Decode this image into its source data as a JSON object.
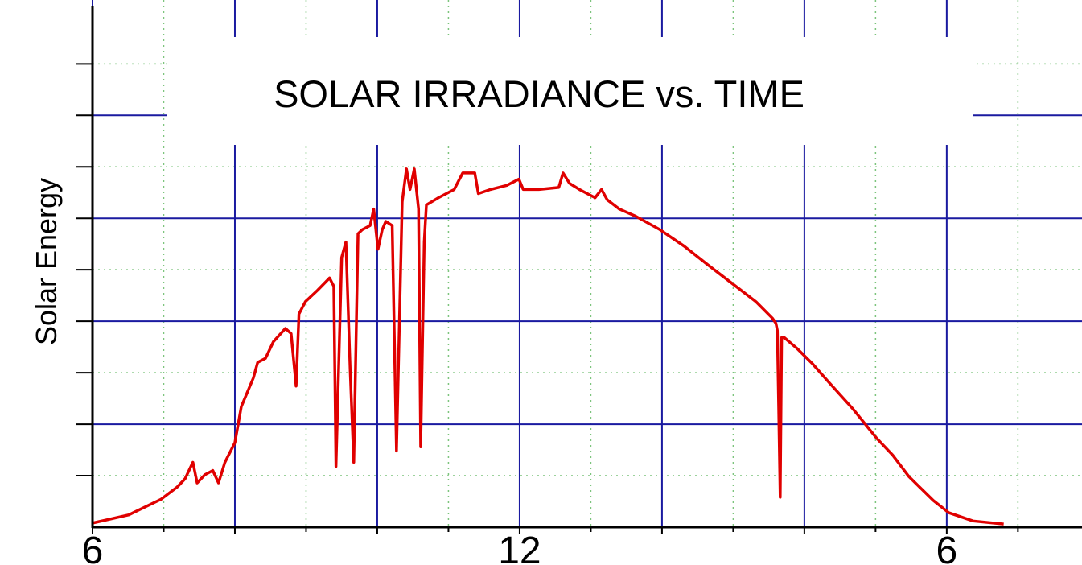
{
  "chart_data": {
    "type": "line",
    "title": "SOLAR IRRADIANCE vs. TIME",
    "ylabel": "Solar Energy",
    "xlim": [
      6,
      19.9
    ],
    "ylim": [
      0,
      5.12
    ],
    "xticks": [
      6,
      8,
      10,
      12,
      14,
      16,
      {
        "value": 18,
        "label": "6"
      }
    ],
    "xtick_labels_at": [
      6,
      12,
      {
        "value": 18,
        "label": "6"
      }
    ],
    "yticks": [
      1,
      2,
      3,
      4
    ],
    "minor_xticks": [
      7,
      9,
      11,
      13,
      15,
      17,
      19
    ],
    "minor_yticks": [
      0.5,
      1.5,
      2.5,
      3.5,
      4.5
    ],
    "grid": true,
    "grid_color": "#1a1aa0",
    "minor_grid_color": "#7cc47c",
    "series": [
      {
        "color": "#e00000",
        "x": [
          6.0,
          6.51,
          6.96,
          7.19,
          7.3,
          7.41,
          7.47,
          7.58,
          7.69,
          7.77,
          7.86,
          8.0,
          8.09,
          8.26,
          8.32,
          8.43,
          8.54,
          8.71,
          8.79,
          8.86,
          8.9,
          8.99,
          9.16,
          9.33,
          9.39,
          9.42,
          9.5,
          9.56,
          9.62,
          9.67,
          9.73,
          9.79,
          9.9,
          9.95,
          10.01,
          10.07,
          10.12,
          10.21,
          10.27,
          10.35,
          10.41,
          10.46,
          10.52,
          10.58,
          10.61,
          10.66,
          10.69,
          10.86,
          11.08,
          11.2,
          11.37,
          11.42,
          11.59,
          11.82,
          11.99,
          12.05,
          12.27,
          12.55,
          12.61,
          12.7,
          12.84,
          13.06,
          13.15,
          13.23,
          13.4,
          13.63,
          13.97,
          14.31,
          14.64,
          14.98,
          15.32,
          15.55,
          15.6,
          15.62,
          15.64,
          15.66,
          15.68,
          15.72,
          15.89,
          16.11,
          16.34,
          16.68,
          17.02,
          17.24,
          17.47,
          17.81,
          18.03,
          18.37,
          18.8
        ],
        "values": [
          0.04,
          0.12,
          0.27,
          0.39,
          0.47,
          0.63,
          0.43,
          0.51,
          0.55,
          0.43,
          0.63,
          0.82,
          1.17,
          1.45,
          1.6,
          1.64,
          1.8,
          1.93,
          1.88,
          1.37,
          2.07,
          2.19,
          2.3,
          2.42,
          2.34,
          0.59,
          2.62,
          2.77,
          1.52,
          0.63,
          2.85,
          2.89,
          2.93,
          3.09,
          2.7,
          2.89,
          2.97,
          2.93,
          0.74,
          3.16,
          3.48,
          3.28,
          3.48,
          3.09,
          0.78,
          2.77,
          3.13,
          3.2,
          3.28,
          3.44,
          3.44,
          3.24,
          3.28,
          3.32,
          3.38,
          3.28,
          3.28,
          3.3,
          3.44,
          3.34,
          3.28,
          3.2,
          3.28,
          3.18,
          3.09,
          3.02,
          2.89,
          2.73,
          2.55,
          2.37,
          2.19,
          2.03,
          1.98,
          1.91,
          1.13,
          0.29,
          1.84,
          1.84,
          1.74,
          1.59,
          1.41,
          1.15,
          0.86,
          0.7,
          0.49,
          0.26,
          0.14,
          0.06,
          0.03
        ]
      }
    ]
  }
}
